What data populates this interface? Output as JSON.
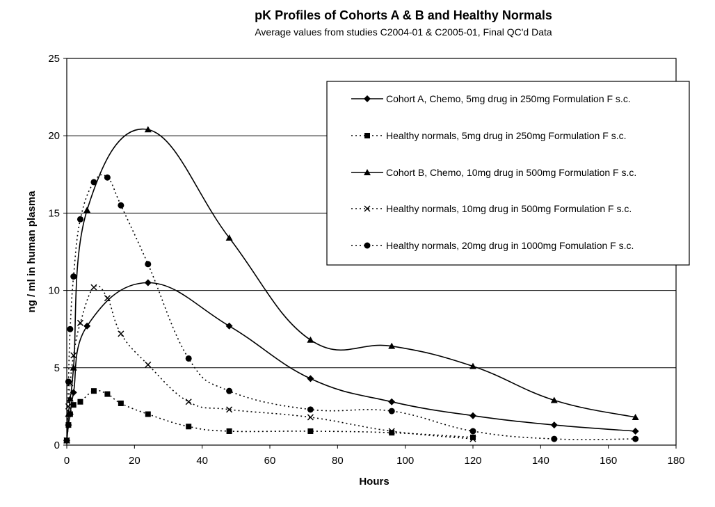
{
  "chart_data": {
    "type": "line",
    "title": "pK Profiles of Cohorts A & B and Healthy Normals",
    "subtitle": "Average values from studies C2004-01 & C2005-01, Final QC'd Data",
    "xlabel": "Hours",
    "ylabel": "ng / ml in human plasma",
    "xlim": [
      0,
      180
    ],
    "ylim": [
      0,
      25
    ],
    "x_ticks": [
      0,
      20,
      40,
      60,
      80,
      100,
      120,
      140,
      160,
      180
    ],
    "y_ticks": [
      0,
      5,
      10,
      15,
      20,
      25
    ],
    "grid": "horizontal",
    "legend_position": "top-right",
    "series": [
      {
        "name": "Cohort A, Chemo, 5mg drug in 250mg Formulation F s.c.",
        "marker": "diamond",
        "line": "solid",
        "color": "#000000",
        "x": [
          0,
          0.5,
          1,
          2,
          6,
          24,
          48,
          72,
          96,
          120,
          144,
          168
        ],
        "y": [
          0.3,
          1.3,
          2.0,
          3.4,
          7.7,
          10.5,
          7.7,
          4.3,
          2.8,
          1.9,
          1.3,
          0.9
        ]
      },
      {
        "name": "Healthy normals, 5mg drug in 250mg Formulation F s.c.",
        "marker": "square",
        "line": "dotted",
        "color": "#000000",
        "x": [
          0,
          0.5,
          1,
          2,
          4,
          8,
          12,
          16,
          24,
          36,
          48,
          72,
          96,
          120
        ],
        "y": [
          0.3,
          1.3,
          2.0,
          2.6,
          2.8,
          3.5,
          3.3,
          2.7,
          2.0,
          1.2,
          0.9,
          0.9,
          0.8,
          0.5
        ]
      },
      {
        "name": "Cohort B, Chemo, 10mg drug in 500mg Formulation F s.c.",
        "marker": "triangle",
        "line": "solid",
        "color": "#000000",
        "x": [
          0,
          0.5,
          1,
          2,
          6,
          24,
          48,
          72,
          96,
          120,
          144,
          168
        ],
        "y": [
          0.3,
          2.0,
          3.0,
          5.0,
          15.2,
          20.4,
          13.4,
          6.8,
          6.4,
          5.1,
          2.9,
          1.8
        ]
      },
      {
        "name": "Healthy normals, 10mg drug in 500mg Formulation F s.c.",
        "marker": "x",
        "line": "dotted",
        "color": "#000000",
        "x": [
          0,
          0.5,
          1,
          2,
          4,
          8,
          12,
          16,
          24,
          36,
          48,
          72,
          96,
          120
        ],
        "y": [
          0.3,
          2.5,
          4.0,
          5.8,
          7.9,
          10.2,
          9.5,
          7.2,
          5.2,
          2.8,
          2.3,
          1.8,
          0.9,
          0.4
        ]
      },
      {
        "name": "Healthy normals, 20mg drug in 1000mg Fomulation F s.c.",
        "marker": "circle",
        "line": "dotted",
        "color": "#000000",
        "x": [
          0,
          0.5,
          1,
          2,
          4,
          8,
          12,
          16,
          24,
          36,
          48,
          72,
          96,
          120,
          144,
          168
        ],
        "y": [
          0.3,
          4.1,
          7.5,
          10.9,
          14.6,
          17.0,
          17.3,
          15.5,
          11.7,
          5.6,
          3.5,
          2.3,
          2.2,
          0.9,
          0.4,
          0.4
        ]
      }
    ]
  }
}
